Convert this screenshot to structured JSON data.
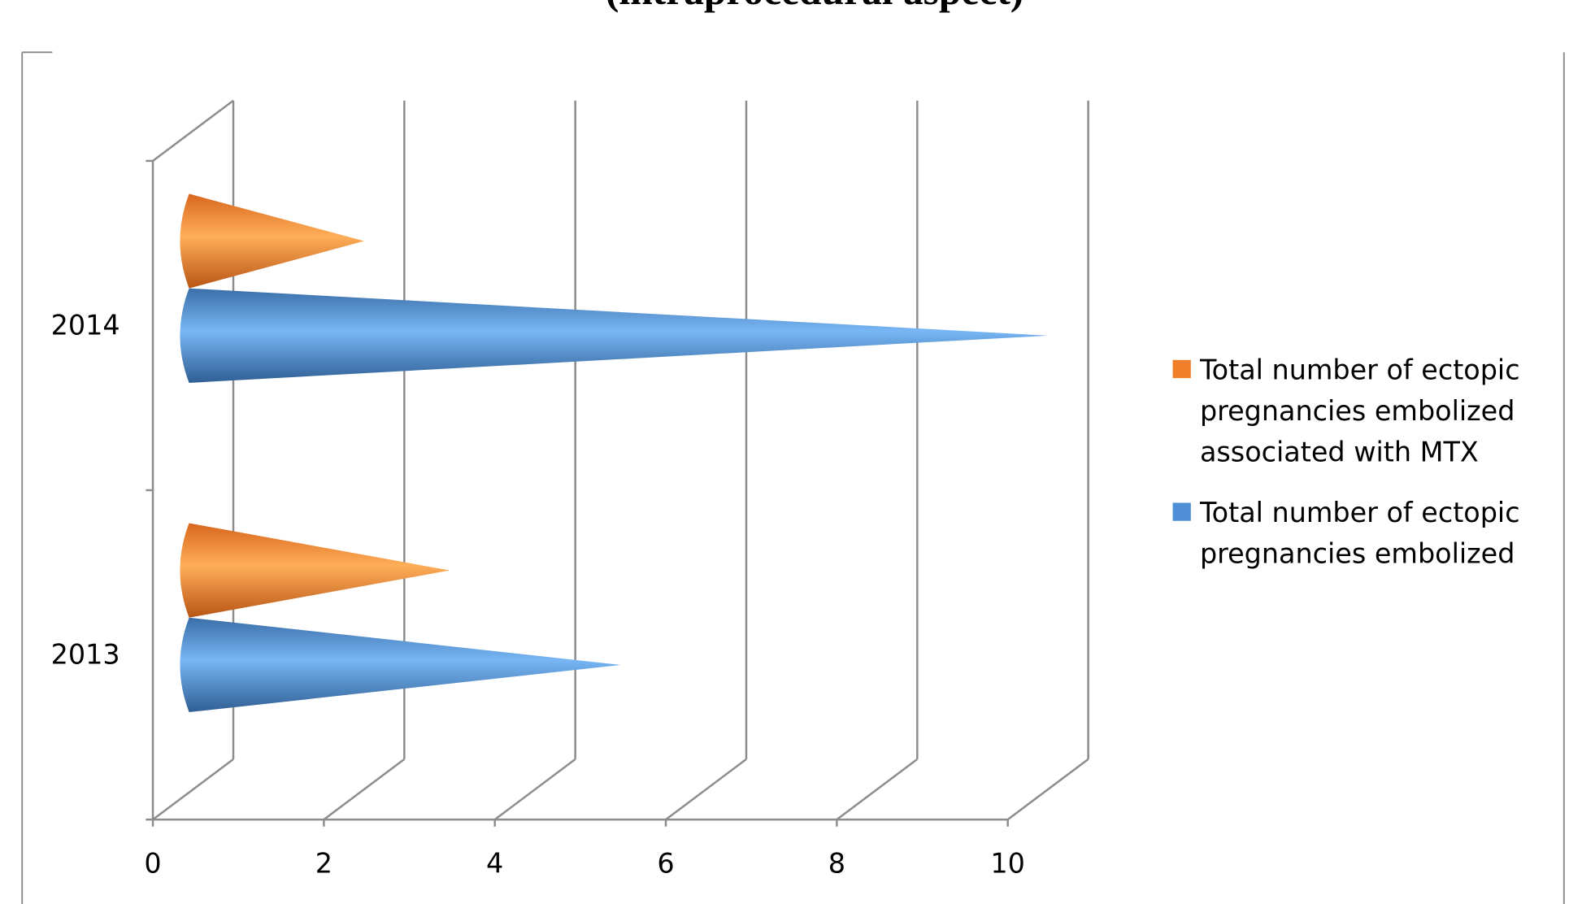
{
  "chart_data": {
    "type": "bar",
    "subtype": "3d-cone-horizontal",
    "title": "(intraprocedural aspect)",
    "categories": [
      "2013",
      "2014"
    ],
    "series": [
      {
        "name": "Total number of ectopic pregnancies embolized",
        "values": [
          5,
          10
        ],
        "color": "#4f8fd6"
      },
      {
        "name": "Total number of ectopic pregnancies embolized associated with MTX",
        "values": [
          3,
          2
        ],
        "color": "#f07f2a"
      }
    ],
    "xlim": [
      0,
      10
    ],
    "xticks": [
      "0",
      "2",
      "4",
      "6",
      "8",
      "10"
    ],
    "grid": true,
    "legend_position": "right",
    "legend": [
      {
        "lines": [
          "Total number of ectopic",
          "pregnancies embolized",
          "associated with MTX"
        ],
        "color": "#f07f2a"
      },
      {
        "lines": [
          "Total number of ectopic",
          "pregnancies embolized"
        ],
        "color": "#4f8fd6"
      }
    ]
  }
}
